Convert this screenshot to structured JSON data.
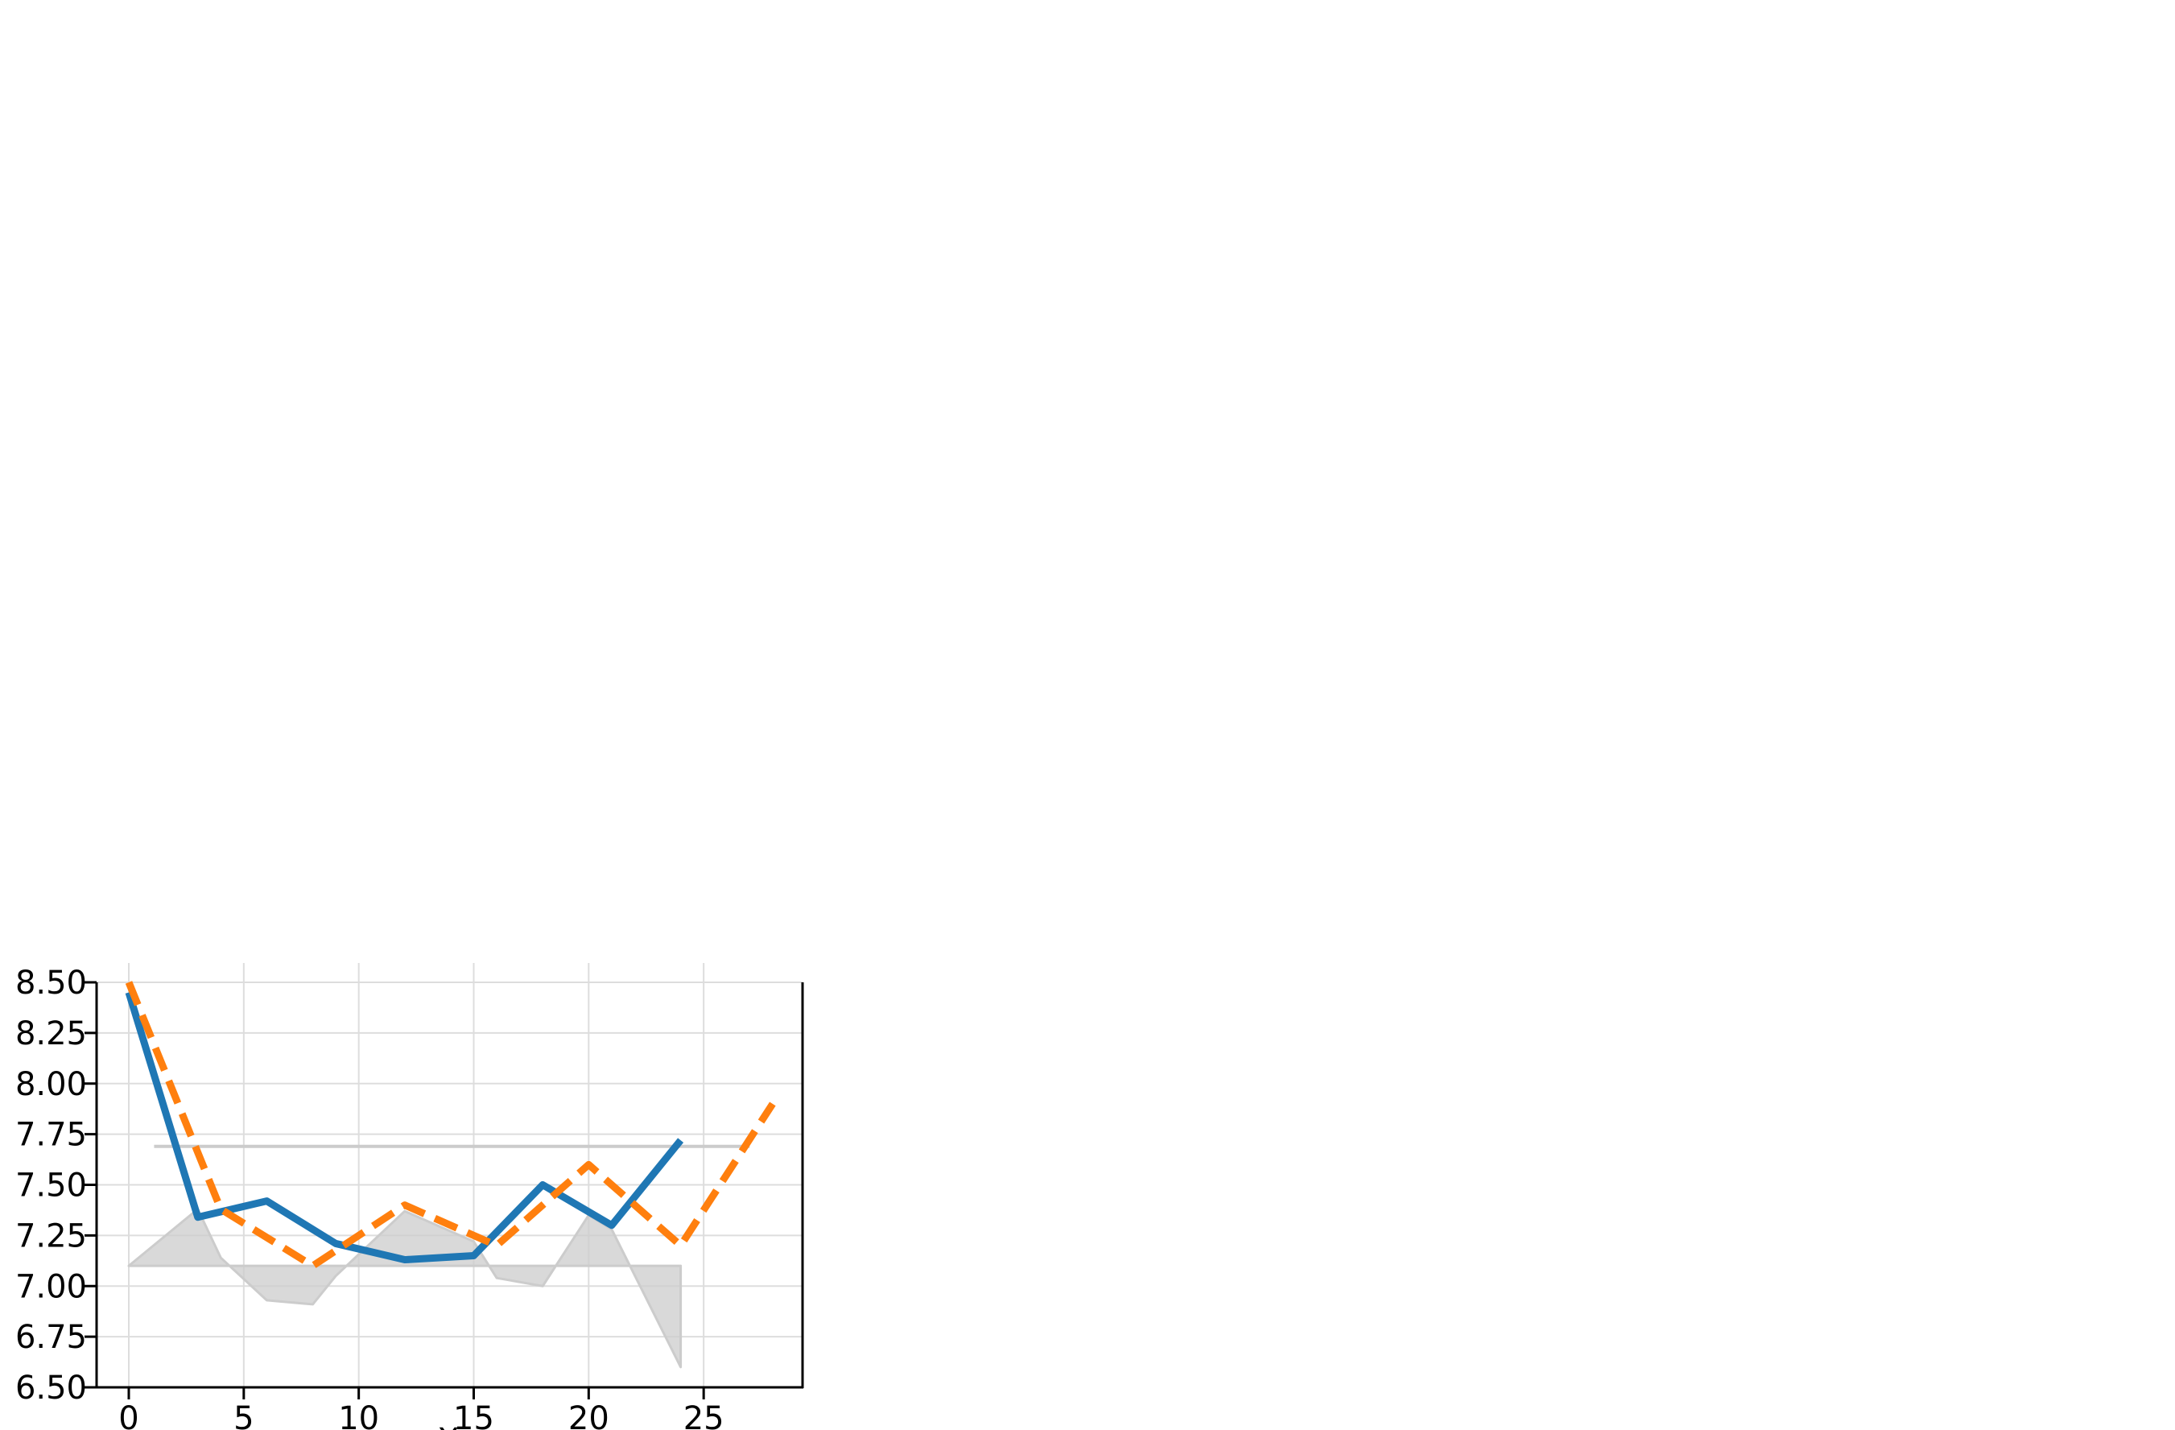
{
  "chart_data": {
    "type": "line",
    "title": "",
    "xlabel": "X",
    "ylabel": "",
    "xlim": [
      -1.4,
      29.3
    ],
    "ylim": [
      6.5,
      8.5
    ],
    "x_ticks": [
      0,
      5,
      10,
      15,
      20,
      25
    ],
    "y_ticks": [
      6.5,
      6.75,
      7.0,
      7.25,
      7.5,
      7.75,
      8.0,
      8.25,
      8.5
    ],
    "x_tick_labels": [
      "0",
      "5",
      "10",
      "15",
      "20",
      "25"
    ],
    "y_tick_labels": [
      "6.50",
      "6.75",
      "7.00",
      "7.25",
      "7.50",
      "7.75",
      "8.00",
      "8.25",
      "8.50"
    ],
    "grid": true,
    "series": [
      {
        "x": [
          0,
          3,
          6,
          9,
          12,
          15,
          18,
          21,
          24
        ],
        "y": [
          8.45,
          7.34,
          7.42,
          7.21,
          7.13,
          7.15,
          7.5,
          7.3,
          7.72
        ],
        "color": "#1f77b4",
        "style": "solid"
      },
      {
        "x": [
          0,
          4,
          8,
          12,
          16,
          20,
          24,
          28
        ],
        "y": [
          8.5,
          7.38,
          7.1,
          7.4,
          7.2,
          7.6,
          7.2,
          7.9
        ],
        "color": "#ff7f0e",
        "style": "dashed"
      }
    ],
    "reference_line": {
      "y": 7.69,
      "x_range": [
        1.1,
        27
      ],
      "color": "#cccccc"
    },
    "fill_area": {
      "baseline": 7.1,
      "x": [
        0,
        3,
        4,
        6,
        8,
        9,
        12,
        15,
        16,
        18,
        20,
        21,
        24
      ],
      "y": [
        7.1,
        7.38,
        7.14,
        6.93,
        6.91,
        7.05,
        7.37,
        7.22,
        7.04,
        7.0,
        7.35,
        7.28,
        6.6
      ],
      "color": "#cccccc"
    },
    "axes_frame": {
      "left": true,
      "bottom": true,
      "right": true,
      "top": false
    }
  }
}
